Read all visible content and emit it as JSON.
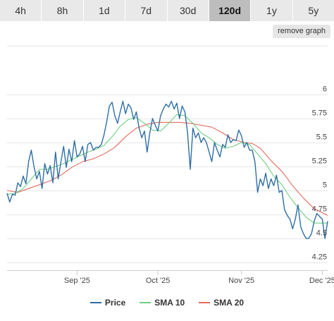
{
  "tabs": [
    {
      "label": "4h",
      "active": false
    },
    {
      "label": "8h",
      "active": false
    },
    {
      "label": "1d",
      "active": false
    },
    {
      "label": "7d",
      "active": false
    },
    {
      "label": "30d",
      "active": false
    },
    {
      "label": "120d",
      "active": true
    },
    {
      "label": "1y",
      "active": false
    },
    {
      "label": "5y",
      "active": false
    }
  ],
  "remove_graph_label": "remove graph",
  "colors": {
    "price": "#2f6ea5",
    "sma10": "#6fcf7f",
    "sma20": "#e46a5c",
    "grid": "#e6e6e6"
  },
  "chart_data": {
    "type": "line",
    "title": "",
    "xlabel": "",
    "ylabel": "",
    "x_ticks": [
      "Sep '25",
      "Oct '25",
      "Nov '25",
      "Dec '25"
    ],
    "x_tick_dates": [
      "2025-09-01",
      "2025-10-01",
      "2025-11-01",
      "2025-12-01"
    ],
    "x_range": [
      "2025-08-06",
      "2025-12-03"
    ],
    "y_ticks": [
      4.25,
      4.5,
      4.75,
      5,
      5.25,
      5.5,
      5.75,
      6
    ],
    "ylim": [
      4.22,
      6.25
    ],
    "grid": true,
    "legend_position": "bottom",
    "series": [
      {
        "name": "Price",
        "points": [
          [
            "2025-08-06",
            4.97
          ],
          [
            "2025-08-07",
            4.88
          ],
          [
            "2025-08-08",
            4.96
          ],
          [
            "2025-08-09",
            4.95
          ],
          [
            "2025-08-10",
            5.08
          ],
          [
            "2025-08-11",
            5.04
          ],
          [
            "2025-08-12",
            5.15
          ],
          [
            "2025-08-13",
            5.07
          ],
          [
            "2025-08-14",
            5.3
          ],
          [
            "2025-08-15",
            5.42
          ],
          [
            "2025-08-16",
            5.25
          ],
          [
            "2025-08-17",
            5.12
          ],
          [
            "2025-08-18",
            5.2
          ],
          [
            "2025-08-19",
            5.02
          ],
          [
            "2025-08-20",
            5.28
          ],
          [
            "2025-08-21",
            5.17
          ],
          [
            "2025-08-22",
            5.26
          ],
          [
            "2025-08-23",
            5.08
          ],
          [
            "2025-08-24",
            5.4
          ],
          [
            "2025-08-25",
            5.12
          ],
          [
            "2025-08-26",
            5.3
          ],
          [
            "2025-08-27",
            5.46
          ],
          [
            "2025-08-28",
            5.24
          ],
          [
            "2025-08-29",
            5.43
          ],
          [
            "2025-08-30",
            5.3
          ],
          [
            "2025-08-31",
            5.52
          ],
          [
            "2025-09-01",
            5.35
          ],
          [
            "2025-09-02",
            5.38
          ],
          [
            "2025-09-03",
            5.46
          ],
          [
            "2025-09-04",
            5.3
          ],
          [
            "2025-09-05",
            5.48
          ],
          [
            "2025-09-06",
            5.5
          ],
          [
            "2025-09-07",
            5.42
          ],
          [
            "2025-09-08",
            5.45
          ],
          [
            "2025-09-09",
            5.45
          ],
          [
            "2025-09-10",
            5.48
          ],
          [
            "2025-09-11",
            5.58
          ],
          [
            "2025-09-12",
            5.72
          ],
          [
            "2025-09-13",
            5.88
          ],
          [
            "2025-09-14",
            5.92
          ],
          [
            "2025-09-15",
            5.78
          ],
          [
            "2025-09-16",
            5.7
          ],
          [
            "2025-09-17",
            5.82
          ],
          [
            "2025-09-18",
            5.93
          ],
          [
            "2025-09-19",
            5.8
          ],
          [
            "2025-09-20",
            5.9
          ],
          [
            "2025-09-21",
            5.86
          ],
          [
            "2025-09-22",
            5.74
          ],
          [
            "2025-09-23",
            5.82
          ],
          [
            "2025-09-24",
            5.65
          ],
          [
            "2025-09-25",
            5.55
          ],
          [
            "2025-09-26",
            5.62
          ],
          [
            "2025-09-27",
            5.4
          ],
          [
            "2025-09-28",
            5.6
          ],
          [
            "2025-09-29",
            5.75
          ],
          [
            "2025-09-30",
            5.68
          ],
          [
            "2025-10-01",
            5.62
          ],
          [
            "2025-10-02",
            5.78
          ],
          [
            "2025-10-03",
            5.85
          ],
          [
            "2025-10-04",
            5.9
          ],
          [
            "2025-10-05",
            5.87
          ],
          [
            "2025-10-06",
            5.93
          ],
          [
            "2025-10-07",
            5.85
          ],
          [
            "2025-10-08",
            5.91
          ],
          [
            "2025-10-09",
            5.75
          ],
          [
            "2025-10-10",
            5.88
          ],
          [
            "2025-10-11",
            5.82
          ],
          [
            "2025-10-12",
            5.6
          ],
          [
            "2025-10-13",
            5.22
          ],
          [
            "2025-10-14",
            5.65
          ],
          [
            "2025-10-15",
            5.55
          ],
          [
            "2025-10-16",
            5.6
          ],
          [
            "2025-10-17",
            5.5
          ],
          [
            "2025-10-18",
            5.55
          ],
          [
            "2025-10-19",
            5.5
          ],
          [
            "2025-10-20",
            5.4
          ],
          [
            "2025-10-21",
            5.3
          ],
          [
            "2025-10-22",
            5.5
          ],
          [
            "2025-10-23",
            5.42
          ],
          [
            "2025-10-24",
            5.35
          ],
          [
            "2025-10-25",
            5.48
          ],
          [
            "2025-10-26",
            5.45
          ],
          [
            "2025-10-27",
            5.58
          ],
          [
            "2025-10-28",
            5.5
          ],
          [
            "2025-10-29",
            5.53
          ],
          [
            "2025-10-30",
            5.52
          ],
          [
            "2025-10-31",
            5.63
          ],
          [
            "2025-11-01",
            5.57
          ],
          [
            "2025-11-02",
            5.45
          ],
          [
            "2025-11-03",
            5.5
          ],
          [
            "2025-11-04",
            5.42
          ],
          [
            "2025-11-05",
            5.42
          ],
          [
            "2025-11-06",
            5.3
          ],
          [
            "2025-11-07",
            4.98
          ],
          [
            "2025-11-08",
            5.12
          ],
          [
            "2025-11-09",
            5.05
          ],
          [
            "2025-11-10",
            5.18
          ],
          [
            "2025-11-11",
            5.02
          ],
          [
            "2025-11-12",
            5.12
          ],
          [
            "2025-11-13",
            5.05
          ],
          [
            "2025-11-14",
            5.16
          ],
          [
            "2025-11-15",
            4.98
          ],
          [
            "2025-11-16",
            5.0
          ],
          [
            "2025-11-17",
            4.8
          ],
          [
            "2025-11-18",
            4.74
          ],
          [
            "2025-11-19",
            4.7
          ],
          [
            "2025-11-20",
            4.6
          ],
          [
            "2025-11-21",
            4.7
          ],
          [
            "2025-11-22",
            4.85
          ],
          [
            "2025-11-23",
            4.62
          ],
          [
            "2025-11-24",
            4.55
          ],
          [
            "2025-11-25",
            4.5
          ],
          [
            "2025-11-26",
            4.5
          ],
          [
            "2025-11-27",
            4.55
          ],
          [
            "2025-11-28",
            4.68
          ],
          [
            "2025-11-29",
            4.76
          ],
          [
            "2025-11-30",
            4.73
          ],
          [
            "2025-12-01",
            4.7
          ],
          [
            "2025-12-02",
            4.5
          ],
          [
            "2025-12-03",
            4.68
          ]
        ]
      },
      {
        "name": "SMA 10",
        "points": [
          [
            "2025-08-06",
            4.96
          ],
          [
            "2025-08-09",
            4.97
          ],
          [
            "2025-08-12",
            5.02
          ],
          [
            "2025-08-15",
            5.12
          ],
          [
            "2025-08-18",
            5.22
          ],
          [
            "2025-08-21",
            5.22
          ],
          [
            "2025-08-24",
            5.25
          ],
          [
            "2025-08-27",
            5.28
          ],
          [
            "2025-08-30",
            5.32
          ],
          [
            "2025-09-02",
            5.36
          ],
          [
            "2025-09-05",
            5.4
          ],
          [
            "2025-09-08",
            5.43
          ],
          [
            "2025-09-11",
            5.47
          ],
          [
            "2025-09-14",
            5.56
          ],
          [
            "2025-09-17",
            5.67
          ],
          [
            "2025-09-20",
            5.74
          ],
          [
            "2025-09-23",
            5.76
          ],
          [
            "2025-09-26",
            5.7
          ],
          [
            "2025-09-29",
            5.63
          ],
          [
            "2025-10-02",
            5.62
          ],
          [
            "2025-10-05",
            5.7
          ],
          [
            "2025-10-08",
            5.79
          ],
          [
            "2025-10-11",
            5.78
          ],
          [
            "2025-10-14",
            5.7
          ],
          [
            "2025-10-17",
            5.6
          ],
          [
            "2025-10-20",
            5.55
          ],
          [
            "2025-10-23",
            5.48
          ],
          [
            "2025-10-26",
            5.44
          ],
          [
            "2025-10-29",
            5.46
          ],
          [
            "2025-11-01",
            5.5
          ],
          [
            "2025-11-04",
            5.48
          ],
          [
            "2025-11-07",
            5.38
          ],
          [
            "2025-11-10",
            5.28
          ],
          [
            "2025-11-13",
            5.15
          ],
          [
            "2025-11-16",
            5.06
          ],
          [
            "2025-11-19",
            4.93
          ],
          [
            "2025-11-22",
            4.82
          ],
          [
            "2025-11-25",
            4.72
          ],
          [
            "2025-11-28",
            4.66
          ],
          [
            "2025-12-01",
            4.66
          ],
          [
            "2025-12-03",
            4.66
          ]
        ]
      },
      {
        "name": "SMA 20",
        "points": [
          [
            "2025-08-06",
            5.0
          ],
          [
            "2025-08-10",
            4.98
          ],
          [
            "2025-08-14",
            5.02
          ],
          [
            "2025-08-18",
            5.06
          ],
          [
            "2025-08-22",
            5.1
          ],
          [
            "2025-08-26",
            5.16
          ],
          [
            "2025-08-30",
            5.24
          ],
          [
            "2025-09-03",
            5.3
          ],
          [
            "2025-09-07",
            5.33
          ],
          [
            "2025-09-11",
            5.38
          ],
          [
            "2025-09-15",
            5.45
          ],
          [
            "2025-09-19",
            5.56
          ],
          [
            "2025-09-23",
            5.65
          ],
          [
            "2025-09-27",
            5.69
          ],
          [
            "2025-10-01",
            5.71
          ],
          [
            "2025-10-05",
            5.71
          ],
          [
            "2025-10-09",
            5.71
          ],
          [
            "2025-10-13",
            5.7
          ],
          [
            "2025-10-17",
            5.68
          ],
          [
            "2025-10-21",
            5.66
          ],
          [
            "2025-10-25",
            5.6
          ],
          [
            "2025-10-29",
            5.53
          ],
          [
            "2025-11-02",
            5.5
          ],
          [
            "2025-11-05",
            5.49
          ],
          [
            "2025-11-08",
            5.44
          ],
          [
            "2025-11-12",
            5.31
          ],
          [
            "2025-11-16",
            5.2
          ],
          [
            "2025-11-20",
            5.05
          ],
          [
            "2025-11-24",
            4.92
          ],
          [
            "2025-11-28",
            4.81
          ],
          [
            "2025-12-03",
            4.74
          ]
        ]
      }
    ]
  },
  "legend": {
    "items": [
      {
        "name": "Price",
        "color": "#2f6ea5"
      },
      {
        "name": "SMA 10",
        "color": "#6fcf7f"
      },
      {
        "name": "SMA 20",
        "color": "#e46a5c"
      }
    ]
  }
}
